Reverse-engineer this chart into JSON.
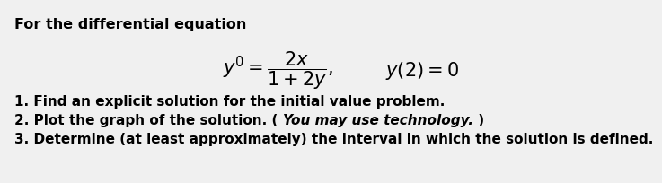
{
  "background_color": "#f0f0f0",
  "header_text": "For the differential equation",
  "header_fontsize": 11.5,
  "equation_fontsize": 13,
  "list_fontsize": 11.0,
  "line1": "1. Find an explicit solution for the initial value problem.",
  "line2_normal_a": "2. Plot the graph of the solution. ( ",
  "line2_italic": "You may use technology.",
  "line2_normal_b": " )",
  "line3": "3. Determine (at least approximately) the interval in which the solution is defined.",
  "eq_latex": "$y' = \\dfrac{2x}{1+2y},$",
  "eq_ic": "$y(2) = 0$"
}
